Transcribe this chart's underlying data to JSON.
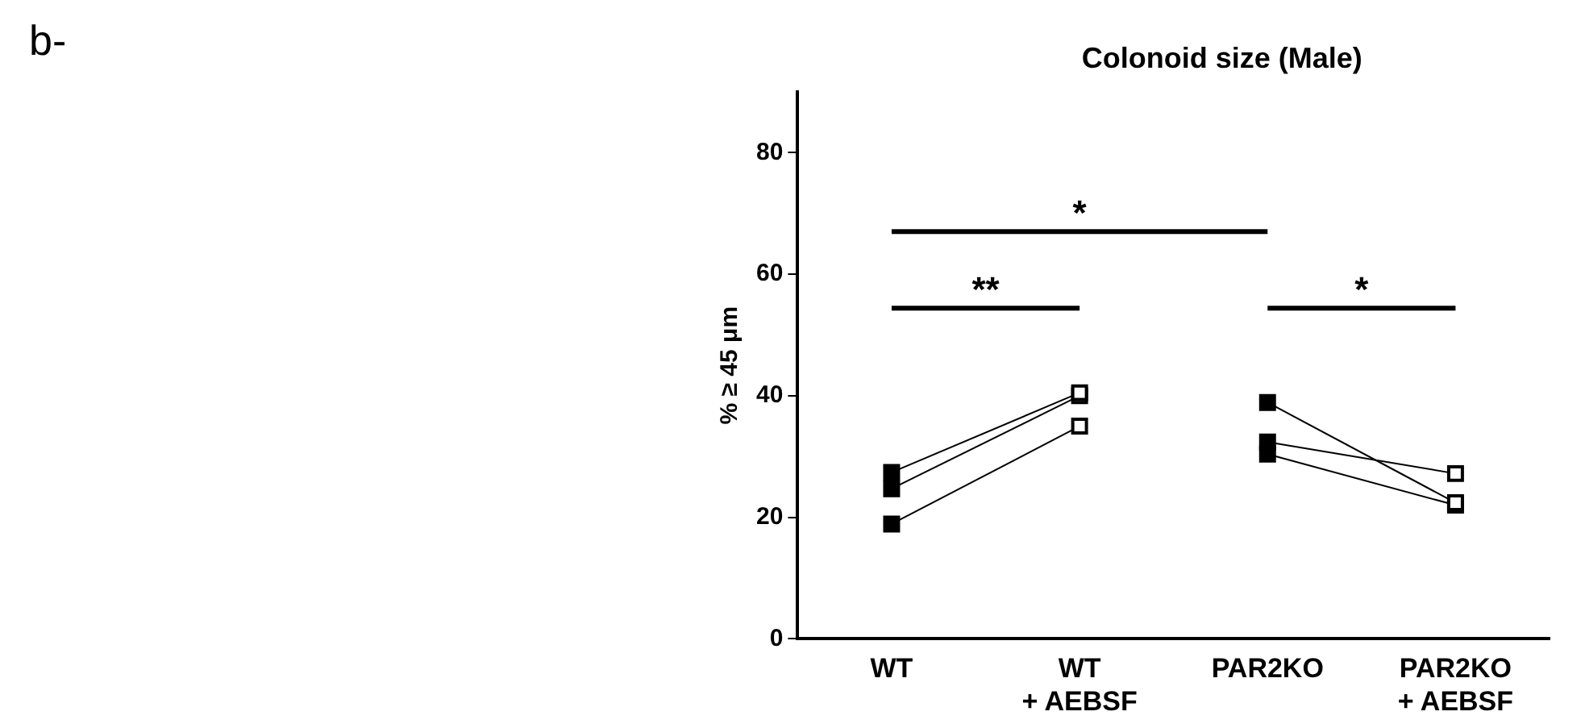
{
  "chart_data": {
    "type": "line",
    "title": "Colonoid size (Male)",
    "ylabel": "% ≥ 45 μm",
    "categories": [
      "WT",
      "WT\n+ AEBSF",
      "PAR2KO",
      "PAR2KO\n+ AEBSF"
    ],
    "series": [
      {
        "color": "#000000",
        "values": [
          27.4,
          40.5,
          null,
          null
        ]
      },
      {
        "color": "#000000",
        "values": [
          24.7,
          40,
          null,
          null
        ]
      },
      {
        "color": "#000000",
        "values": [
          18.9,
          35,
          null,
          null
        ]
      },
      {
        "color": "#000000",
        "values": [
          null,
          null,
          38.9,
          22.4
        ]
      },
      {
        "color": "#000000",
        "values": [
          null,
          null,
          32.4,
          27.2
        ]
      },
      {
        "color": "#000000",
        "values": [
          null,
          null,
          30.4,
          22
        ]
      }
    ],
    "ylim": [
      0,
      90
    ],
    "yticks": [
      0,
      20,
      40,
      60,
      80
    ],
    "grid": false,
    "legend": false,
    "marker": "square",
    "line_style": "solid",
    "annotations": [
      "*",
      "**",
      "*",
      "b-"
    ]
  }
}
